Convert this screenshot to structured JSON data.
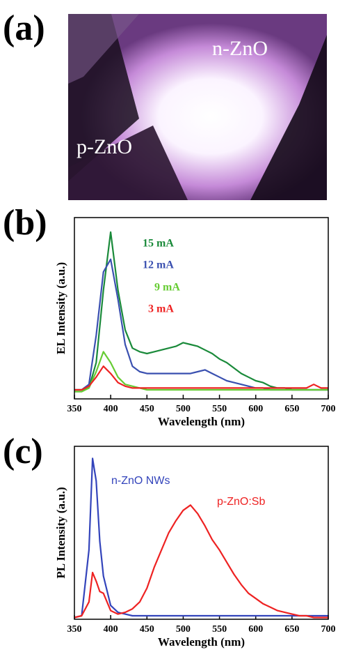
{
  "photo": {
    "panel_label": "(a)",
    "labels": [
      "n-ZnO",
      "p-ZnO"
    ]
  },
  "chart_data": [
    {
      "type": "line",
      "panel_label": "(b)",
      "y_label": "EL Intensity (a.u.)",
      "x_label": "Wavelength (nm)",
      "x": [
        350,
        360,
        370,
        380,
        390,
        400,
        410,
        420,
        430,
        440,
        450,
        460,
        470,
        480,
        490,
        500,
        510,
        520,
        530,
        540,
        550,
        560,
        570,
        580,
        590,
        600,
        610,
        620,
        630,
        640,
        650,
        660,
        670,
        680,
        690,
        700
      ],
      "xlim": [
        350,
        700
      ],
      "xticks": [
        350,
        400,
        450,
        500,
        550,
        600,
        650,
        700
      ],
      "ylim": [
        0,
        100
      ],
      "series": [
        {
          "name": "15 mA",
          "color": "#1a8a3a",
          "values": [
            5,
            5,
            6,
            20,
            60,
            92,
            60,
            38,
            28,
            26,
            25,
            26,
            27,
            28,
            29,
            31,
            30,
            29,
            27,
            25,
            22,
            20,
            17,
            14,
            12,
            10,
            9,
            7,
            6,
            6,
            5,
            5,
            5,
            5,
            5,
            5
          ]
        },
        {
          "name": "12 mA",
          "color": "#3a50b0",
          "values": [
            5,
            5,
            8,
            35,
            70,
            77,
            55,
            30,
            18,
            15,
            14,
            14,
            14,
            14,
            14,
            14,
            14,
            15,
            16,
            14,
            12,
            10,
            9,
            8,
            7,
            6,
            6,
            5,
            5,
            5,
            5,
            5,
            5,
            5,
            5,
            5
          ]
        },
        {
          "name": "9 mA",
          "color": "#66cc33",
          "values": [
            4,
            4,
            6,
            15,
            26,
            20,
            12,
            8,
            7,
            6,
            5,
            5,
            5,
            5,
            5,
            5,
            5,
            5,
            5,
            5,
            5,
            5,
            5,
            5,
            5,
            5,
            5,
            5,
            5,
            5,
            5,
            5,
            5,
            5,
            5,
            5
          ]
        },
        {
          "name": "3 mA",
          "color": "#ee2222",
          "values": [
            5,
            5,
            7,
            12,
            18,
            14,
            9,
            7,
            6,
            6,
            6,
            6,
            6,
            6,
            6,
            6,
            6,
            6,
            6,
            6,
            6,
            6,
            6,
            6,
            6,
            6,
            6,
            6,
            6,
            6,
            6,
            6,
            6,
            8,
            6,
            6
          ]
        }
      ]
    },
    {
      "type": "line",
      "panel_label": "(c)",
      "y_label": "PL Intensity (a.u.)",
      "x_label": "Wavelength (nm)",
      "x": [
        350,
        360,
        370,
        375,
        380,
        385,
        390,
        400,
        410,
        420,
        430,
        440,
        450,
        460,
        470,
        480,
        490,
        500,
        510,
        520,
        530,
        540,
        550,
        560,
        570,
        580,
        590,
        600,
        610,
        620,
        630,
        640,
        650,
        660,
        670,
        680,
        690,
        700
      ],
      "xlim": [
        350,
        700
      ],
      "xticks": [
        350,
        400,
        450,
        500,
        550,
        600,
        650,
        700
      ],
      "ylim": [
        0,
        100
      ],
      "series": [
        {
          "name": "n-ZnO NWs",
          "color": "#3344bb",
          "values": [
            1,
            2,
            40,
            93,
            80,
            45,
            25,
            8,
            4,
            3,
            2,
            2,
            2,
            2,
            2,
            2,
            2,
            2,
            2,
            2,
            2,
            2,
            2,
            2,
            2,
            2,
            2,
            2,
            2,
            2,
            2,
            2,
            2,
            2,
            2,
            2,
            2,
            2
          ]
        },
        {
          "name": "p-ZnO:Sb",
          "color": "#ee2222",
          "values": [
            1,
            2,
            10,
            27,
            22,
            16,
            15,
            5,
            3,
            4,
            6,
            10,
            18,
            30,
            40,
            50,
            57,
            63,
            66,
            61,
            54,
            46,
            40,
            33,
            26,
            20,
            15,
            12,
            9,
            7,
            5,
            4,
            3,
            2,
            2,
            1,
            1,
            1
          ]
        }
      ]
    }
  ]
}
